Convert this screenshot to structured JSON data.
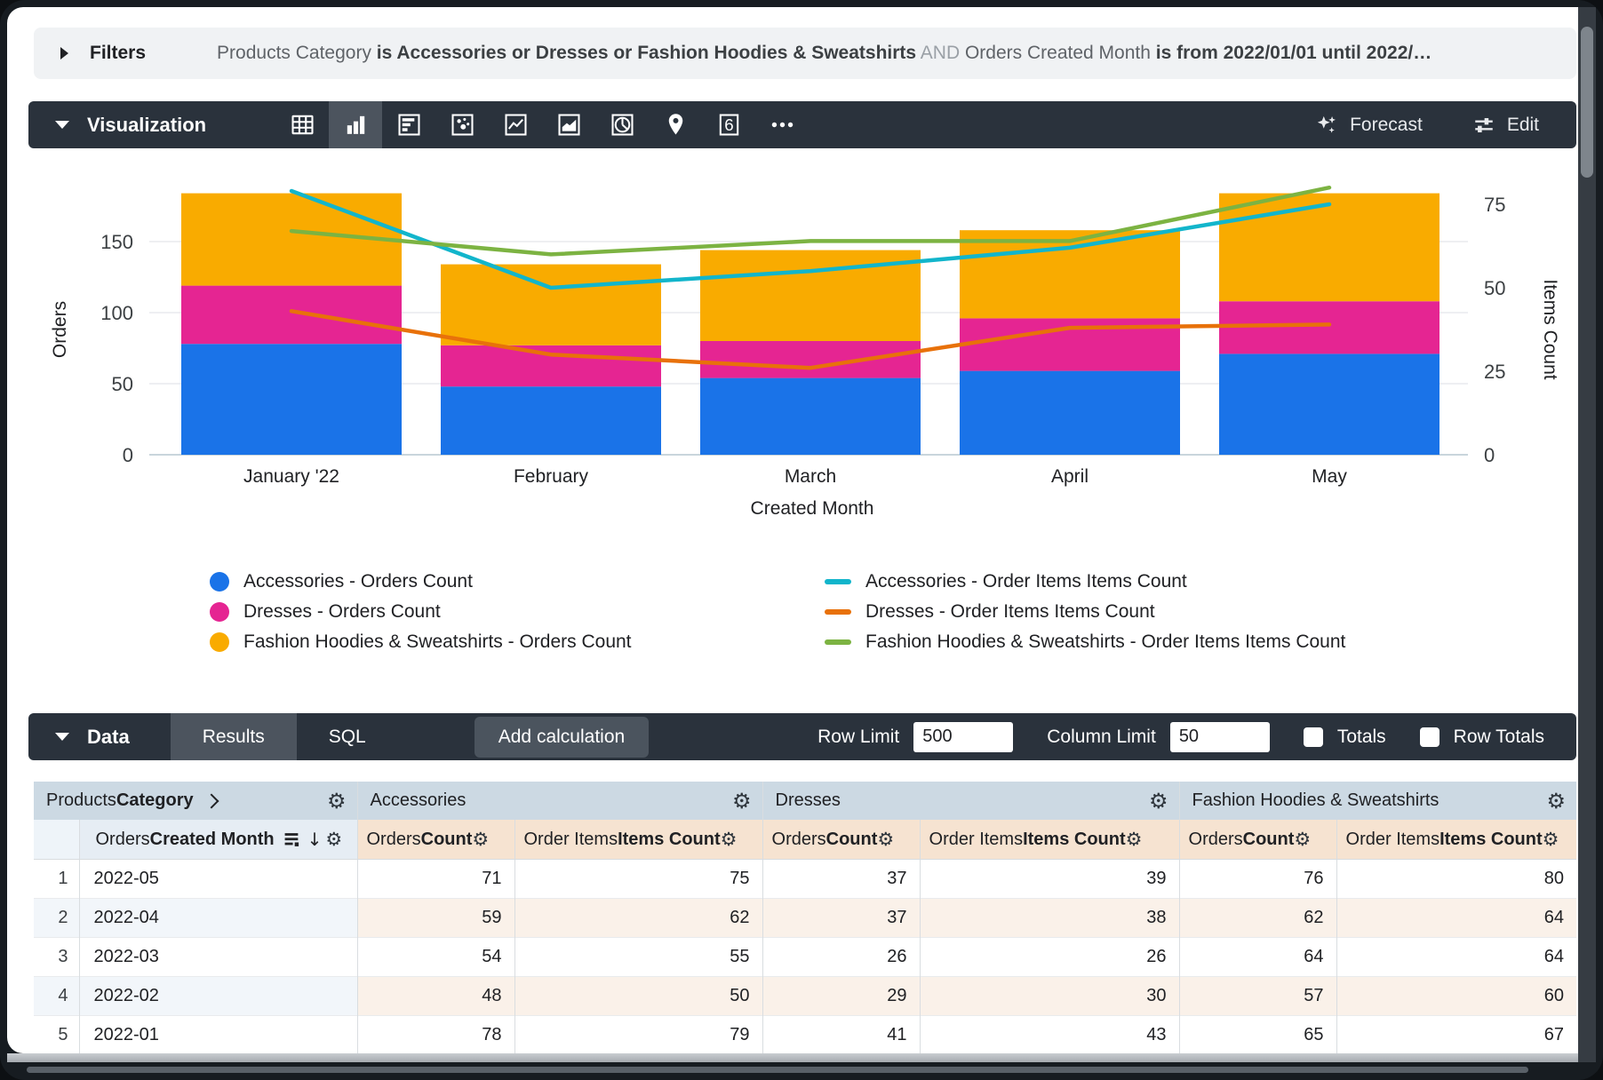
{
  "filters": {
    "label": "Filters",
    "summary_segments": [
      {
        "style": "field",
        "text": "Products Category"
      },
      {
        "style": "value",
        "text": "is Accessories or Dresses or Fashion Hoodies & Sweatshirts"
      },
      {
        "style": "conjunction",
        "text": "AND"
      },
      {
        "style": "field",
        "text": "Orders Created Month"
      },
      {
        "style": "value",
        "text": "is from 2022/01/01 until 2022/…"
      }
    ]
  },
  "visualization": {
    "title": "Visualization",
    "forecast_label": "Forecast",
    "edit_label": "Edit",
    "viz_type_icons": [
      {
        "name": "table-chart",
        "selected": false
      },
      {
        "name": "column-chart",
        "selected": true
      },
      {
        "name": "bar-chart",
        "selected": false
      },
      {
        "name": "scatter-chart",
        "selected": false
      },
      {
        "name": "line-chart",
        "selected": false
      },
      {
        "name": "area-chart",
        "selected": false
      },
      {
        "name": "pie-chart",
        "selected": false
      },
      {
        "name": "map-chart",
        "selected": false
      },
      {
        "name": "single-value",
        "selected": false
      },
      {
        "name": "more-options",
        "selected": false
      }
    ]
  },
  "chart_data": {
    "type": "combo: stacked columns (left axis) + lines (right axis)",
    "categories": [
      "January '22",
      "February",
      "March",
      "April",
      "May"
    ],
    "x_axis_title": "Created Month",
    "left_axis": {
      "title": "Orders",
      "ticks": [
        0,
        50,
        100,
        150
      ],
      "max": 191
    },
    "right_axis": {
      "title": "Items Count",
      "ticks": [
        0,
        25,
        50,
        75
      ],
      "max": 92
    },
    "grid": true,
    "legend_position": "bottom-two-columns",
    "bar_series": [
      {
        "name": "Accessories - Orders Count",
        "color": "#1a73e8",
        "values": [
          78,
          48,
          54,
          59,
          71
        ]
      },
      {
        "name": "Dresses - Orders Count",
        "color": "#e52592",
        "values": [
          41,
          29,
          26,
          37,
          37
        ]
      },
      {
        "name": "Fashion Hoodies & Sweatshirts - Orders Count",
        "color": "#f9ab00",
        "values": [
          65,
          57,
          64,
          62,
          76
        ]
      }
    ],
    "line_series": [
      {
        "name": "Accessories - Order Items Items Count",
        "color": "#12b5cb",
        "values": [
          79,
          50,
          55,
          62,
          75
        ]
      },
      {
        "name": "Dresses - Order Items Items Count",
        "color": "#e8710a",
        "values": [
          43,
          30,
          26,
          38,
          39
        ]
      },
      {
        "name": "Fashion Hoodies & Sweatshirts - Order Items Items Count",
        "color": "#7cb342",
        "values": [
          67,
          60,
          64,
          64,
          80
        ]
      }
    ]
  },
  "data_panel": {
    "title": "Data",
    "tabs": [
      {
        "label": "Results",
        "active": true
      },
      {
        "label": "SQL",
        "active": false
      }
    ],
    "add_calculation_label": "Add calculation",
    "row_limit_label": "Row Limit",
    "row_limit_value": "500",
    "column_limit_label": "Column Limit",
    "column_limit_value": "50",
    "totals_label": "Totals",
    "totals_checked": false,
    "row_totals_label": "Row Totals",
    "row_totals_checked": false
  },
  "table": {
    "group_headers": [
      {
        "normal": "Products",
        "bold": "Category",
        "has_chevron": true
      },
      {
        "label": "Accessories"
      },
      {
        "label": "Dresses"
      },
      {
        "label": "Fashion Hoodies & Sweatshirts"
      }
    ],
    "dimension_subheader": {
      "normal": "Orders",
      "bold": "Created Month",
      "sorted_desc": true
    },
    "measure_subheaders": [
      {
        "normal": "Orders",
        "bold": "Count"
      },
      {
        "normal": "Order Items",
        "bold": "Items Count"
      }
    ],
    "rows": [
      {
        "index": "1",
        "dimension": "2022-05",
        "values": [
          "71",
          "75",
          "37",
          "39",
          "76",
          "80"
        ]
      },
      {
        "index": "2",
        "dimension": "2022-04",
        "values": [
          "59",
          "62",
          "37",
          "38",
          "62",
          "64"
        ]
      },
      {
        "index": "3",
        "dimension": "2022-03",
        "values": [
          "54",
          "55",
          "26",
          "26",
          "64",
          "64"
        ]
      },
      {
        "index": "4",
        "dimension": "2022-02",
        "values": [
          "48",
          "50",
          "29",
          "30",
          "57",
          "60"
        ]
      },
      {
        "index": "5",
        "dimension": "2022-01",
        "values": [
          "78",
          "79",
          "41",
          "43",
          "65",
          "67"
        ]
      }
    ]
  },
  "colors": {
    "accent_blue": "#1a73e8",
    "accent_pink": "#e52592",
    "accent_amber": "#f9ab00",
    "accent_cyan": "#12b5cb",
    "accent_orange": "#e8710a",
    "accent_green": "#7cb342",
    "toolbar_dark": "#2a323c",
    "selected_item_bg": "#4c545e",
    "filter_bar_bg": "#f0f2f4",
    "table_group_header_bg": "#ccd9e3",
    "table_dimension_subheader_bg": "#e6edf4",
    "table_measure_subheader_bg": "#f6e3d1"
  }
}
